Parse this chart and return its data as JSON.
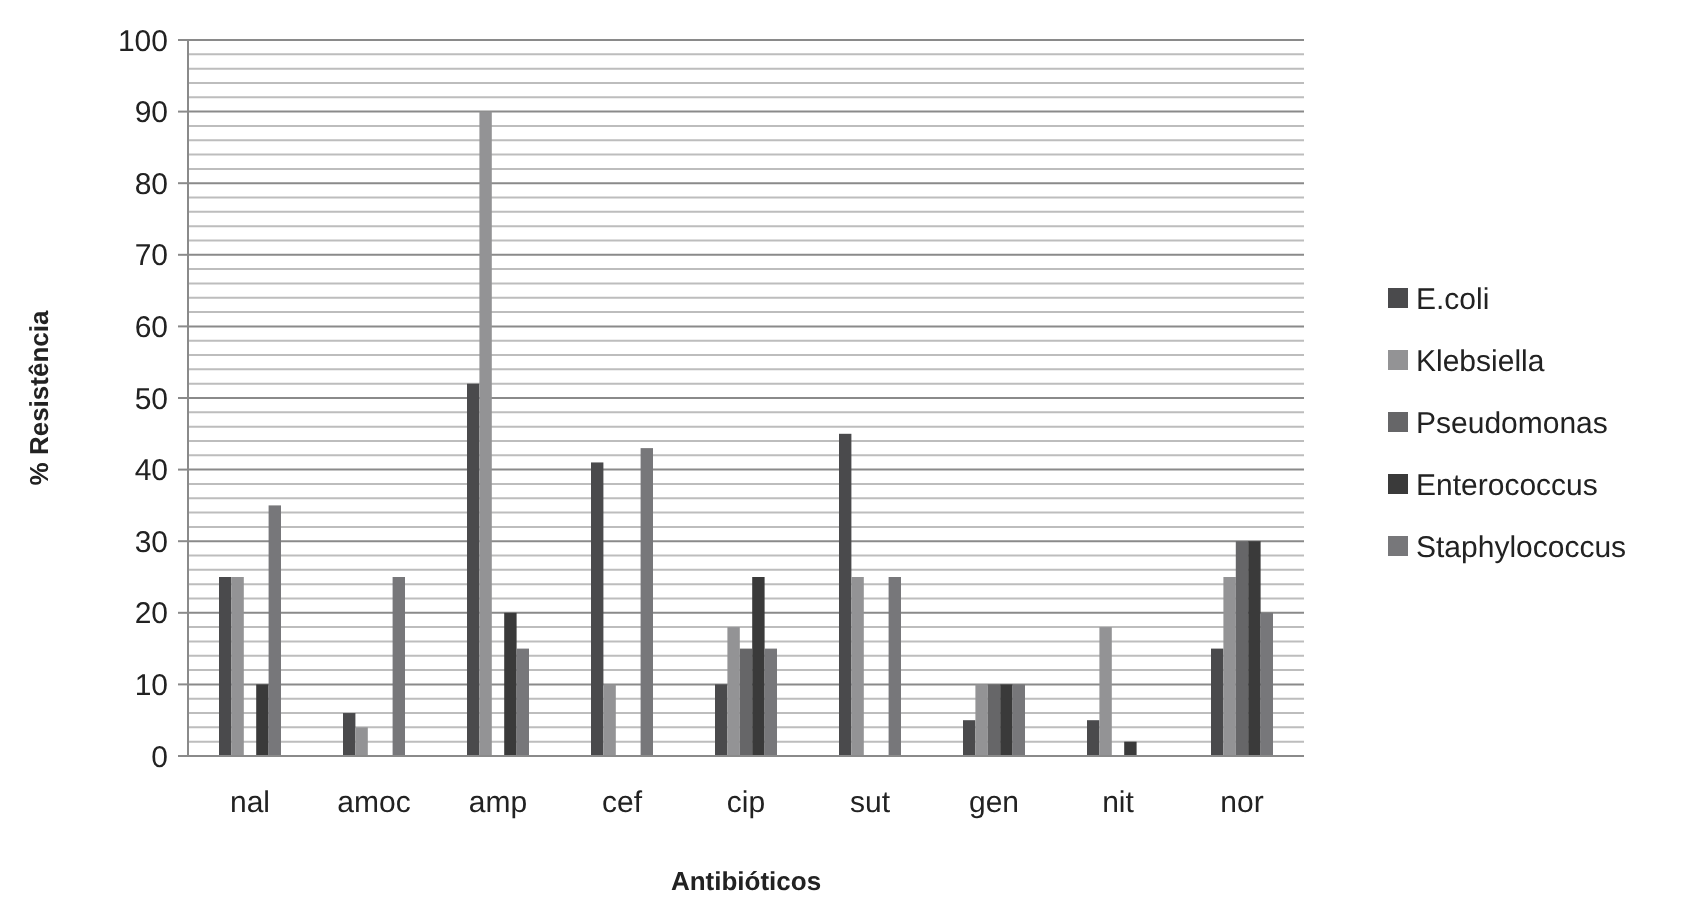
{
  "chart_data": {
    "type": "bar",
    "xlabel": "Antibióticos",
    "ylabel": "% Resistência",
    "categories": [
      "nal",
      "amoc",
      "amp",
      "cef",
      "cip",
      "sut",
      "gen",
      "nit",
      "nor"
    ],
    "series": [
      {
        "name": "E.coli",
        "color": "#4a4a4c",
        "values": [
          25,
          6,
          52,
          41,
          10,
          45,
          5,
          5,
          15
        ]
      },
      {
        "name": "Klebsiella",
        "color": "#939395",
        "values": [
          25,
          4,
          90,
          10,
          18,
          25,
          10,
          18,
          25
        ]
      },
      {
        "name": "Pseudomonas",
        "color": "#666668",
        "values": [
          null,
          null,
          null,
          null,
          15,
          null,
          10,
          null,
          30
        ]
      },
      {
        "name": "Enterococcus",
        "color": "#3a3a3a",
        "values": [
          10,
          null,
          20,
          null,
          25,
          null,
          10,
          2,
          30
        ]
      },
      {
        "name": "Staphylococcus",
        "color": "#77777a",
        "values": [
          35,
          25,
          15,
          43,
          15,
          25,
          10,
          null,
          20
        ]
      }
    ],
    "ylim": [
      0,
      100
    ],
    "yticks": [
      0,
      {
        "value": 2,
        "label": null
      },
      {
        "value": 4,
        "label": null
      },
      {
        "value": 6,
        "label": null
      },
      {
        "value": 8,
        "label": null
      },
      10,
      {
        "value": 12,
        "label": null
      },
      {
        "value": 14,
        "label": null
      },
      {
        "value": 16,
        "label": null
      },
      {
        "value": 18,
        "label": null
      },
      20,
      {
        "value": 22,
        "label": null
      },
      {
        "value": 24,
        "label": null
      },
      {
        "value": 26,
        "label": null
      },
      {
        "value": 28,
        "label": null
      },
      30,
      {
        "value": 32,
        "label": null
      },
      {
        "value": 34,
        "label": null
      },
      {
        "value": 36,
        "label": null
      },
      {
        "value": 38,
        "label": null
      },
      40,
      {
        "value": 42,
        "label": null
      },
      {
        "value": 44,
        "label": null
      },
      {
        "value": 46,
        "label": null
      },
      {
        "value": 48,
        "label": null
      },
      50,
      {
        "value": 52,
        "label": null
      },
      {
        "value": 54,
        "label": null
      },
      {
        "value": 56,
        "label": null
      },
      {
        "value": 58,
        "label": null
      },
      60,
      {
        "value": 62,
        "label": null
      },
      {
        "value": 64,
        "label": null
      },
      {
        "value": 66,
        "label": null
      },
      {
        "value": 68,
        "label": null
      },
      70,
      {
        "value": 72,
        "label": null
      },
      {
        "value": 74,
        "label": null
      },
      {
        "value": 76,
        "label": null
      },
      {
        "value": 78,
        "label": null
      },
      80,
      {
        "value": 82,
        "label": null
      },
      {
        "value": 84,
        "label": null
      },
      {
        "value": 86,
        "label": null
      },
      {
        "value": 88,
        "label": null
      },
      90,
      {
        "value": 92,
        "label": null
      },
      {
        "value": 94,
        "label": null
      },
      {
        "value": 96,
        "label": null
      },
      {
        "value": 98,
        "label": null
      },
      100
    ],
    "grid": true,
    "legend": "right"
  }
}
